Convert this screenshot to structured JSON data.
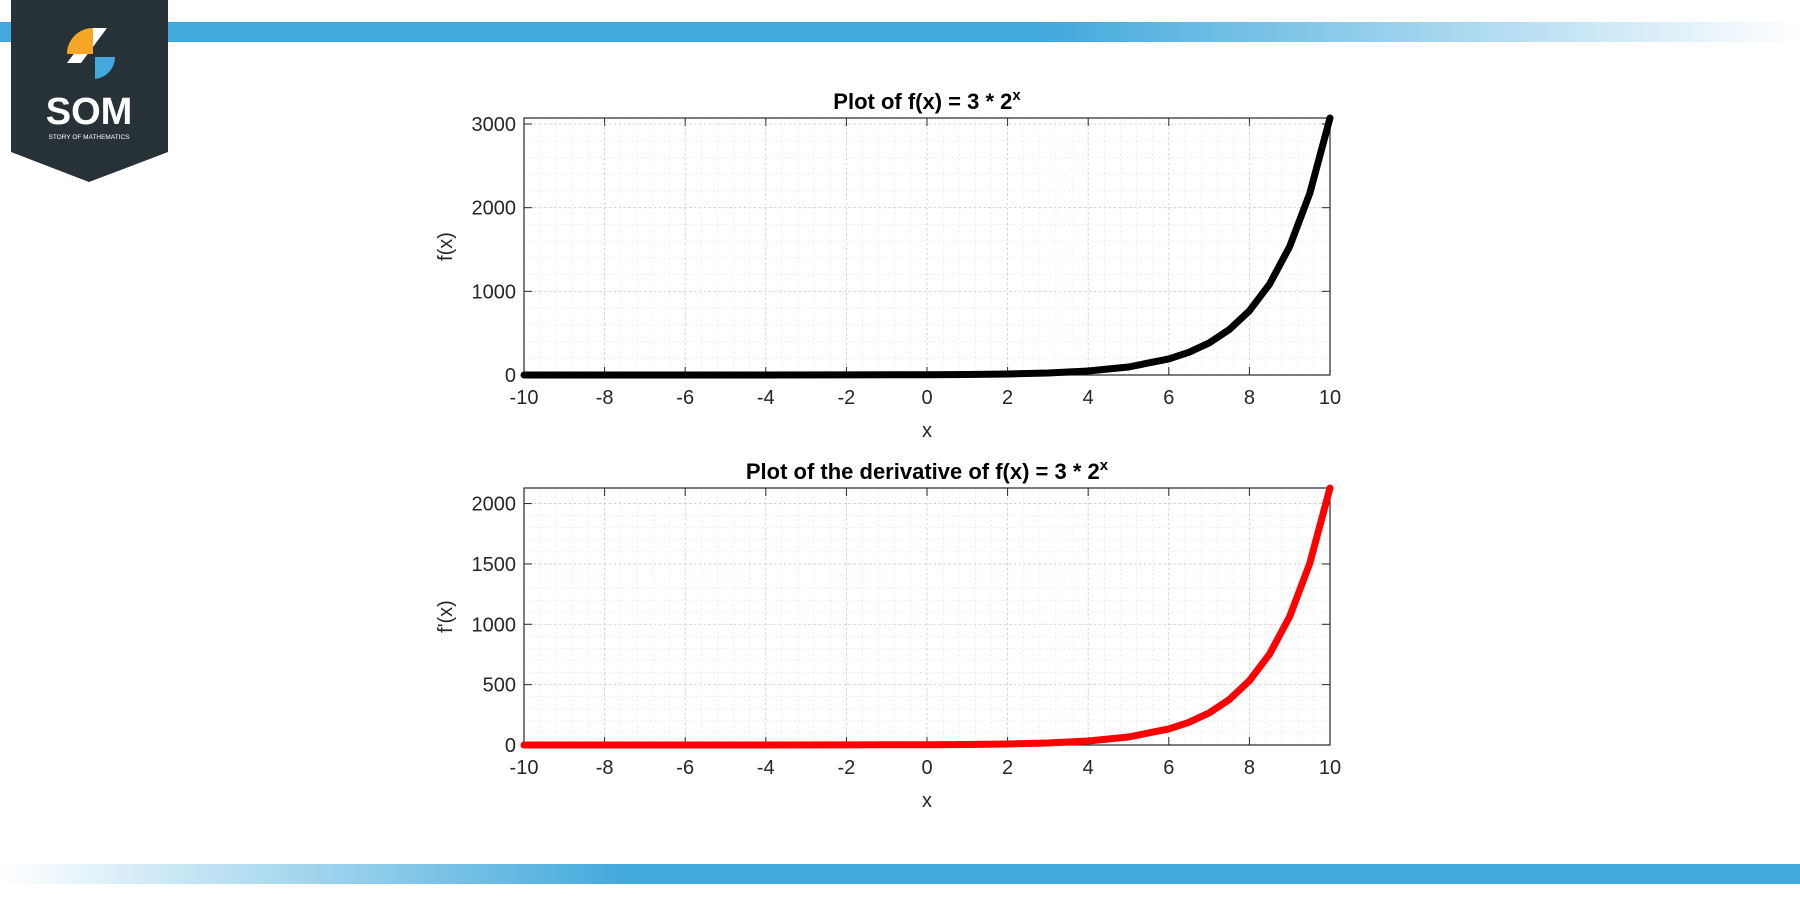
{
  "brand": {
    "name": "SOM",
    "tagline": "STORY OF MATHEMATICS",
    "colors": {
      "dark": "#263238",
      "orange": "#f5a623",
      "blue": "#42a9dc",
      "band": "#42a9dc"
    }
  },
  "chart_data": [
    {
      "type": "line",
      "title": "Plot of f(x) = 3 * 2",
      "title_superscript": "x",
      "xlabel": "x",
      "ylabel": "f(x)",
      "xlim": [
        -10,
        10
      ],
      "ylim": [
        0,
        3072
      ],
      "xticks": [
        -10,
        -8,
        -6,
        -4,
        -2,
        0,
        2,
        4,
        6,
        8,
        10
      ],
      "yticks": [
        0,
        1000,
        2000,
        3000
      ],
      "grid": true,
      "minor_grid": true,
      "series": [
        {
          "color": "#000000",
          "x": [
            -10,
            -8,
            -6,
            -4,
            -2,
            0,
            1,
            2,
            3,
            4,
            5,
            6,
            6.5,
            7,
            7.5,
            8,
            8.5,
            9,
            9.5,
            10
          ],
          "y": [
            0.003,
            0.012,
            0.047,
            0.19,
            0.75,
            3,
            6,
            12,
            24,
            48,
            96,
            192,
            271.5,
            384,
            543.1,
            768,
            1086.1,
            1536,
            2172.2,
            3072
          ]
        }
      ]
    },
    {
      "type": "line",
      "title": "Plot of the derivative of f(x) = 3 * 2",
      "title_superscript": "x",
      "xlabel": "x",
      "ylabel": "f'(x)",
      "xlim": [
        -10,
        10
      ],
      "ylim": [
        0,
        2129
      ],
      "xticks": [
        -10,
        -8,
        -6,
        -4,
        -2,
        0,
        2,
        4,
        6,
        8,
        10
      ],
      "yticks": [
        0,
        500,
        1000,
        1500,
        2000
      ],
      "grid": true,
      "minor_grid": true,
      "series": [
        {
          "color": "#ff0000",
          "x": [
            -10,
            -8,
            -6,
            -4,
            -2,
            0,
            1,
            2,
            3,
            4,
            5,
            6,
            6.5,
            7,
            7.5,
            8,
            8.5,
            9,
            9.5,
            10
          ],
          "y": [
            0.002,
            0.008,
            0.032,
            0.13,
            0.52,
            2.08,
            4.16,
            8.32,
            16.6,
            33.3,
            66.5,
            133.1,
            188.2,
            266.2,
            376.4,
            532.3,
            752.8,
            1064.6,
            1505.6,
            2129.3
          ]
        }
      ]
    }
  ]
}
